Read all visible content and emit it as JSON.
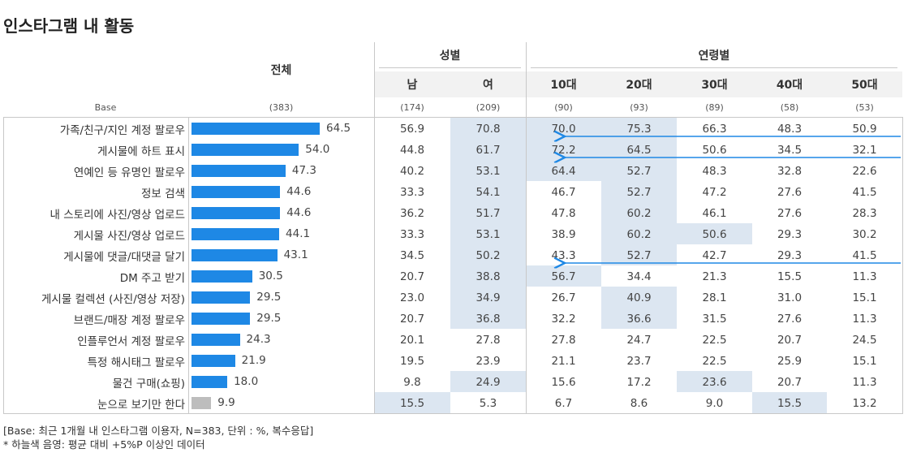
{
  "title": "인스타그램 내 활동",
  "chart_data": {
    "type": "table",
    "total_label": "전체",
    "base_label": "Base",
    "total_base": "(383)",
    "groups": [
      {
        "name": "성별",
        "columns": [
          "남",
          "여"
        ]
      },
      {
        "name": "연령별",
        "columns": [
          "10대",
          "20대",
          "30대",
          "40대",
          "50대"
        ]
      }
    ],
    "column_bases": [
      "(174)",
      "(209)",
      "(90)",
      "(93)",
      "(89)",
      "(58)",
      "(53)"
    ],
    "rows": [
      {
        "label": "가족/친구/지인 계정 팔로우",
        "total": "64.5",
        "total_value": 64.5,
        "values": [
          "56.9",
          "70.8",
          "70.0",
          "75.3",
          "66.3",
          "48.3",
          "50.9"
        ],
        "highlight": [
          false,
          true,
          true,
          true,
          false,
          false,
          false
        ]
      },
      {
        "label": "게시물에 하트 표시",
        "total": "54.0",
        "total_value": 54.0,
        "values": [
          "44.8",
          "61.7",
          "72.2",
          "64.5",
          "50.6",
          "34.5",
          "32.1"
        ],
        "highlight": [
          false,
          true,
          true,
          true,
          false,
          false,
          false
        ]
      },
      {
        "label": "연예인 등 유명인 팔로우",
        "total": "47.3",
        "total_value": 47.3,
        "values": [
          "40.2",
          "53.1",
          "64.4",
          "52.7",
          "48.3",
          "32.8",
          "22.6"
        ],
        "highlight": [
          false,
          true,
          true,
          true,
          false,
          false,
          false
        ]
      },
      {
        "label": "정보 검색",
        "total": "44.6",
        "total_value": 44.6,
        "values": [
          "33.3",
          "54.1",
          "46.7",
          "52.7",
          "47.2",
          "27.6",
          "41.5"
        ],
        "highlight": [
          false,
          true,
          false,
          true,
          false,
          false,
          false
        ]
      },
      {
        "label": "내 스토리에 사진/영상 업로드",
        "total": "44.6",
        "total_value": 44.6,
        "values": [
          "36.2",
          "51.7",
          "47.8",
          "60.2",
          "46.1",
          "27.6",
          "28.3"
        ],
        "highlight": [
          false,
          true,
          false,
          true,
          false,
          false,
          false
        ]
      },
      {
        "label": "게시물 사진/영상 업로드",
        "total": "44.1",
        "total_value": 44.1,
        "values": [
          "33.3",
          "53.1",
          "38.9",
          "60.2",
          "50.6",
          "29.3",
          "30.2"
        ],
        "highlight": [
          false,
          true,
          false,
          true,
          true,
          false,
          false
        ]
      },
      {
        "label": "게시물에 댓글/대댓글 달기",
        "total": "43.1",
        "total_value": 43.1,
        "values": [
          "34.5",
          "50.2",
          "43.3",
          "52.7",
          "42.7",
          "29.3",
          "41.5"
        ],
        "highlight": [
          false,
          true,
          false,
          true,
          false,
          false,
          false
        ]
      },
      {
        "label": "DM 주고 받기",
        "total": "30.5",
        "total_value": 30.5,
        "values": [
          "20.7",
          "38.8",
          "56.7",
          "34.4",
          "21.3",
          "15.5",
          "11.3"
        ],
        "highlight": [
          false,
          true,
          true,
          false,
          false,
          false,
          false
        ]
      },
      {
        "label": "게시물 컬렉션 (사진/영상 저장)",
        "total": "29.5",
        "total_value": 29.5,
        "values": [
          "23.0",
          "34.9",
          "26.7",
          "40.9",
          "28.1",
          "31.0",
          "15.1"
        ],
        "highlight": [
          false,
          true,
          false,
          true,
          false,
          false,
          false
        ]
      },
      {
        "label": "브랜드/매장 계정 팔로우",
        "total": "29.5",
        "total_value": 29.5,
        "values": [
          "20.7",
          "36.8",
          "32.2",
          "36.6",
          "31.5",
          "27.6",
          "11.3"
        ],
        "highlight": [
          false,
          true,
          false,
          true,
          false,
          false,
          false
        ]
      },
      {
        "label": "인플루언서 계정 팔로우",
        "total": "24.3",
        "total_value": 24.3,
        "values": [
          "20.1",
          "27.8",
          "27.8",
          "24.7",
          "22.5",
          "20.7",
          "24.5"
        ],
        "highlight": [
          false,
          false,
          false,
          false,
          false,
          false,
          false
        ]
      },
      {
        "label": "특정 해시태그 팔로우",
        "total": "21.9",
        "total_value": 21.9,
        "values": [
          "19.5",
          "23.9",
          "21.1",
          "23.7",
          "22.5",
          "25.9",
          "15.1"
        ],
        "highlight": [
          false,
          false,
          false,
          false,
          false,
          false,
          false
        ]
      },
      {
        "label": "물건 구매(쇼핑)",
        "total": "18.0",
        "total_value": 18.0,
        "values": [
          "9.8",
          "24.9",
          "15.6",
          "17.2",
          "23.6",
          "20.7",
          "11.3"
        ],
        "highlight": [
          false,
          true,
          false,
          false,
          true,
          false,
          false
        ]
      },
      {
        "label": "눈으로 보기만 한다",
        "total": "9.9",
        "total_value": 9.9,
        "values": [
          "15.5",
          "5.3",
          "6.7",
          "8.6",
          "9.0",
          "15.5",
          "13.2"
        ],
        "highlight": [
          true,
          false,
          false,
          false,
          false,
          true,
          false
        ],
        "bar_color": "gray"
      }
    ],
    "arrows": [
      {
        "row": 0,
        "from_col": 6,
        "to_col": 2
      },
      {
        "row": 1,
        "from_col": 6,
        "to_col": 2
      },
      {
        "row": 6,
        "from_col": 6,
        "to_col": 2
      }
    ],
    "colors": {
      "bar": "#1e88e5",
      "bar_gray": "#bdbdbd",
      "highlight": "#dce6f1",
      "arrow": "#1e88e5"
    }
  },
  "footnote": {
    "line1": "[Base: 최근 1개월 내 인스타그램 이용자, N=383, 단위 : %, 복수응답]",
    "line2": "* 하늘색 음영: 평균 대비 +5%P 이상인 데이터"
  }
}
